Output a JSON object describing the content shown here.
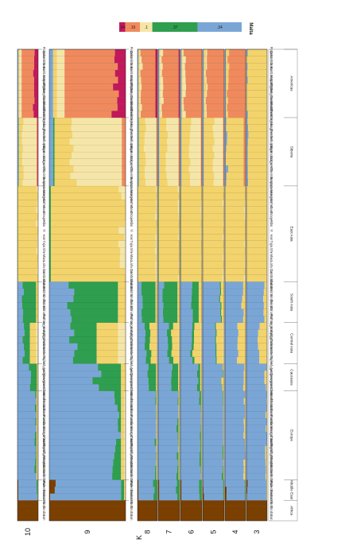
{
  "chart_data": {
    "type": "bar",
    "orientation": "vertical-stacked-admixture",
    "legend": {
      "title": "Malta",
      "placement": "top-right",
      "entries": [
        {
          "label": ".04",
          "color": "#c2185b"
        },
        {
          "label": ".16",
          "color": "#f08a5d"
        },
        {
          "label": ".1",
          "color": "#f5e6a8"
        },
        {
          "label": ".37",
          "color": "#2e9e4f"
        },
        {
          "label": ".34",
          "color": "#7aa6d6"
        }
      ]
    },
    "k_axis_label": "K",
    "panels": [
      {
        "k": "10"
      },
      {
        "k": "9"
      },
      {
        "k": "8"
      },
      {
        "k": "7"
      },
      {
        "k": "6"
      },
      {
        "k": "5"
      },
      {
        "k": "4"
      },
      {
        "k": "3"
      }
    ],
    "components": [
      {
        "name": "c1",
        "color": "#7b3f00"
      },
      {
        "name": "c2",
        "color": "#7aa6d6"
      },
      {
        "name": "c3",
        "color": "#2e9e4f"
      },
      {
        "name": "c4",
        "color": "#f3d36b"
      },
      {
        "name": "c5",
        "color": "#f5e6a8"
      },
      {
        "name": "c6",
        "color": "#f08a5d"
      },
      {
        "name": "c7",
        "color": "#c2185b"
      }
    ],
    "regions": [
      {
        "name": "Africa",
        "populations": [
          "San",
          "Yoruba",
          "Mbuti"
        ]
      },
      {
        "name": "Middle East",
        "populations": [
          "Bedouins",
          "Palestinians",
          "Druze"
        ]
      },
      {
        "name": "Europe",
        "populations": [
          "Sardinians",
          "Croatians",
          "French",
          "French_Basques",
          "North_Italians",
          "Tuscans",
          "Hungarians",
          "Ukrainians",
          "Russians",
          "Lithuanians",
          "Estonians",
          "Mordovians",
          "Chuvash"
        ]
      },
      {
        "name": "Caucasus",
        "populations": [
          "Armenians",
          "Georgians",
          "Lezgins",
          "Adygei"
        ]
      },
      {
        "name": "Central Asia",
        "populations": [
          "Tajiks",
          "Uzbeks",
          "Turkmens",
          "Kyrgyzstans",
          "Kazakhs",
          "Uygurs"
        ]
      },
      {
        "name": "South Asia",
        "populations": [
          "Pathan",
          "Burusho",
          "Balochi",
          "Sindhi",
          "Brahui",
          "Makrani"
        ]
      },
      {
        "name": "East Asia",
        "populations": [
          "Cambodians",
          "Dai",
          "Lahu",
          "Miao",
          "She",
          "Tujia",
          "Han",
          "Yi",
          "Xibo",
          "Oroqen",
          "Daur",
          "Hezhen",
          "Mongola",
          "Japanese"
        ]
      },
      {
        "name": "Siberia",
        "populations": [
          "Buryats",
          "Tuvinians",
          "Altai",
          "Dolgans",
          "Ngansasans",
          "Yakuts",
          "Selkups",
          "Evenks",
          "Yukaghirs",
          "Koryaks"
        ]
      },
      {
        "name": "Americas",
        "populations": [
          "Chukchi",
          "Aleutians",
          "West_Greenlanders",
          "East_Greenlanders",
          "Pima",
          "Mayas",
          "Karitiana",
          "Surui",
          "Colombians",
          "Piapoco"
        ]
      }
    ],
    "region_profiles": {
      "Africa": {
        "10": [
          1,
          0,
          0,
          0,
          0,
          0,
          0
        ],
        "9": [
          1,
          0,
          0,
          0,
          0,
          0,
          0
        ],
        "8": [
          1,
          0,
          0,
          0,
          0,
          0,
          0
        ],
        "7": [
          1,
          0,
          0,
          0,
          0,
          0,
          0
        ],
        "6": [
          1,
          0,
          0,
          0,
          0,
          0,
          0
        ],
        "5": [
          1,
          0,
          0,
          0,
          0,
          0,
          0
        ],
        "4": [
          1,
          0,
          0,
          0,
          0,
          0,
          0
        ],
        "3": [
          1,
          0,
          0,
          0,
          0,
          0,
          0
        ]
      },
      "Middle East": {
        "10": [
          0.04,
          0.88,
          0.06,
          0.02,
          0,
          0,
          0
        ],
        "9": [
          0.04,
          0.9,
          0.04,
          0.02,
          0,
          0,
          0
        ],
        "8": [
          0.05,
          0.78,
          0.15,
          0.02,
          0,
          0,
          0
        ],
        "7": [
          0.05,
          0.8,
          0.13,
          0.02,
          0,
          0,
          0
        ],
        "6": [
          0.05,
          0.82,
          0.11,
          0.02,
          0,
          0,
          0
        ],
        "5": [
          0.05,
          0.9,
          0.03,
          0.02,
          0,
          0,
          0
        ],
        "4": [
          0.05,
          0.91,
          0.02,
          0.02,
          0,
          0,
          0
        ],
        "3": [
          0.06,
          0.9,
          0,
          0.04,
          0,
          0,
          0
        ]
      },
      "Europe": {
        "10": [
          0,
          0.86,
          0.06,
          0.04,
          0.02,
          0,
          0.02
        ],
        "9": [
          0,
          0.88,
          0.06,
          0.04,
          0.02,
          0,
          0
        ],
        "8": [
          0,
          0.9,
          0.04,
          0.03,
          0.03,
          0,
          0
        ],
        "7": [
          0,
          0.9,
          0.05,
          0.03,
          0.02,
          0,
          0
        ],
        "6": [
          0,
          0.92,
          0.04,
          0.02,
          0.02,
          0,
          0
        ],
        "5": [
          0,
          0.94,
          0.02,
          0.02,
          0.02,
          0,
          0
        ],
        "4": [
          0,
          0.95,
          0,
          0.03,
          0.02,
          0,
          0
        ],
        "3": [
          0,
          0.96,
          0,
          0.04,
          0,
          0,
          0
        ]
      },
      "Caucasus": {
        "10": [
          0,
          0.6,
          0.34,
          0.06,
          0,
          0,
          0
        ],
        "9": [
          0,
          0.62,
          0.32,
          0.06,
          0,
          0,
          0
        ],
        "8": [
          0,
          0.55,
          0.38,
          0.07,
          0,
          0,
          0
        ],
        "7": [
          0,
          0.6,
          0.33,
          0.07,
          0,
          0,
          0
        ],
        "6": [
          0,
          0.82,
          0.1,
          0.08,
          0,
          0,
          0
        ],
        "5": [
          0,
          0.9,
          0.02,
          0.08,
          0,
          0,
          0
        ],
        "4": [
          0,
          0.92,
          0,
          0.08,
          0,
          0,
          0
        ],
        "3": [
          0,
          0.92,
          0,
          0.08,
          0,
          0,
          0
        ]
      },
      "Central Asia": {
        "10": [
          0,
          0.3,
          0.3,
          0.3,
          0.1,
          0,
          0
        ],
        "9": [
          0,
          0.32,
          0.3,
          0.28,
          0.1,
          0,
          0
        ],
        "8": [
          0,
          0.4,
          0.25,
          0.3,
          0.05,
          0,
          0
        ],
        "7": [
          0,
          0.45,
          0.2,
          0.3,
          0.05,
          0,
          0
        ],
        "6": [
          0,
          0.5,
          0.1,
          0.35,
          0.05,
          0,
          0
        ],
        "5": [
          0,
          0.55,
          0.05,
          0.35,
          0.05,
          0,
          0
        ],
        "4": [
          0,
          0.6,
          0,
          0.4,
          0,
          0,
          0
        ],
        "3": [
          0,
          0.6,
          0,
          0.4,
          0,
          0,
          0
        ]
      },
      "South Asia": {
        "10": [
          0,
          0.25,
          0.65,
          0.1,
          0,
          0,
          0
        ],
        "9": [
          0,
          0.28,
          0.62,
          0.1,
          0,
          0,
          0
        ],
        "8": [
          0,
          0.2,
          0.7,
          0.1,
          0,
          0,
          0
        ],
        "7": [
          0,
          0.25,
          0.65,
          0.1,
          0,
          0,
          0
        ],
        "6": [
          0,
          0.55,
          0.3,
          0.15,
          0,
          0,
          0
        ],
        "5": [
          0,
          0.8,
          0.05,
          0.15,
          0,
          0,
          0
        ],
        "4": [
          0,
          0.85,
          0,
          0.15,
          0,
          0,
          0
        ],
        "3": [
          0,
          0.85,
          0,
          0.15,
          0,
          0,
          0
        ]
      },
      "East Asia": {
        "10": [
          0,
          0,
          0.02,
          0.93,
          0.05,
          0,
          0
        ],
        "9": [
          0,
          0,
          0.02,
          0.93,
          0.05,
          0,
          0
        ],
        "8": [
          0,
          0,
          0.02,
          0.93,
          0.05,
          0,
          0
        ],
        "7": [
          0,
          0,
          0.02,
          0.95,
          0.03,
          0,
          0
        ],
        "6": [
          0,
          0,
          0.02,
          0.95,
          0.03,
          0,
          0
        ],
        "5": [
          0,
          0,
          0,
          0.97,
          0.03,
          0,
          0
        ],
        "4": [
          0,
          0,
          0,
          0.98,
          0.02,
          0,
          0
        ],
        "3": [
          0,
          0,
          0,
          1,
          0,
          0,
          0
        ]
      },
      "Siberia": {
        "10": [
          0,
          0.05,
          0.02,
          0.2,
          0.65,
          0.05,
          0.03
        ],
        "9": [
          0,
          0.05,
          0.02,
          0.25,
          0.63,
          0.05,
          0
        ],
        "8": [
          0,
          0.05,
          0.02,
          0.3,
          0.58,
          0.05,
          0
        ],
        "7": [
          0,
          0.05,
          0,
          0.35,
          0.55,
          0.05,
          0
        ],
        "6": [
          0,
          0.05,
          0,
          0.4,
          0.5,
          0.05,
          0
        ],
        "5": [
          0,
          0.05,
          0,
          0.45,
          0.45,
          0.05,
          0
        ],
        "4": [
          0,
          0.1,
          0,
          0.8,
          0,
          0.1,
          0
        ],
        "3": [
          0,
          0.1,
          0,
          0.9,
          0,
          0,
          0
        ]
      },
      "Americas": {
        "10": [
          0,
          0.05,
          0,
          0.05,
          0.1,
          0.6,
          0.2
        ],
        "9": [
          0,
          0.05,
          0,
          0.05,
          0.1,
          0.65,
          0.15
        ],
        "8": [
          0,
          0.05,
          0,
          0.05,
          0.1,
          0.7,
          0.1
        ],
        "7": [
          0,
          0.05,
          0,
          0.05,
          0.1,
          0.75,
          0.05
        ],
        "6": [
          0,
          0.05,
          0,
          0.05,
          0.1,
          0.8,
          0
        ],
        "5": [
          0,
          0.05,
          0,
          0.1,
          0.05,
          0.8,
          0
        ],
        "4": [
          0,
          0.05,
          0,
          0.1,
          0,
          0.85,
          0
        ],
        "3": [
          0,
          0.05,
          0,
          0.95,
          0,
          0,
          0
        ]
      }
    }
  }
}
